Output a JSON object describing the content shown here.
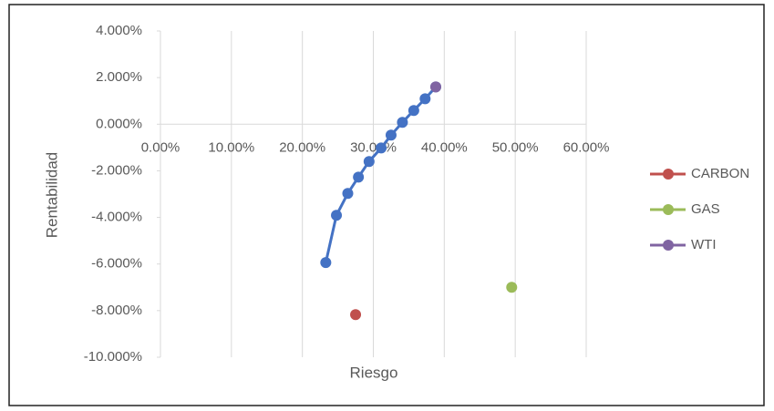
{
  "chart_data": {
    "type": "scatter",
    "x_label": "Riesgo",
    "y_label": "Rentabilidad",
    "xlim": [
      0,
      60
    ],
    "ylim": [
      -10,
      4
    ],
    "xticks": [
      {
        "value": 0,
        "label": "0.00%"
      },
      {
        "value": 10,
        "label": "10.00%"
      },
      {
        "value": 20,
        "label": "20.00%"
      },
      {
        "value": 30,
        "label": "30.00%"
      },
      {
        "value": 40,
        "label": "40.00%"
      },
      {
        "value": 50,
        "label": "50.00%"
      },
      {
        "value": 60,
        "label": "60.00%"
      }
    ],
    "yticks": [
      {
        "value": -10,
        "label": "-10.000%"
      },
      {
        "value": -8,
        "label": "-8.000%"
      },
      {
        "value": -6,
        "label": "-6.000%"
      },
      {
        "value": -4,
        "label": "-4.000%"
      },
      {
        "value": -2,
        "label": "-2.000%"
      },
      {
        "value": 0,
        "label": "0.000%"
      },
      {
        "value": 2,
        "label": "2.000%"
      },
      {
        "value": 4,
        "label": "4.000%"
      }
    ],
    "grid": "x",
    "legend": "right",
    "series": [
      {
        "color": "#4472c4",
        "line": true,
        "x": [
          23.3,
          24.8,
          26.4,
          27.9,
          29.4,
          31.1,
          32.5,
          34.1,
          35.7,
          37.3,
          38.8
        ],
        "values": [
          -5.94,
          -3.91,
          -2.97,
          -2.27,
          -1.6,
          -1.02,
          -0.47,
          0.08,
          0.59,
          1.09,
          1.6
        ]
      },
      {
        "name": "CARBON",
        "color": "#c0504d",
        "x": [
          27.5
        ],
        "values": [
          -8.17
        ]
      },
      {
        "name": "GAS",
        "color": "#9bbb59",
        "x": [
          49.5
        ],
        "values": [
          -7.0
        ]
      },
      {
        "name": "WTI",
        "color": "#8064a2",
        "x": [
          38.8
        ],
        "values": [
          1.6
        ]
      }
    ]
  }
}
